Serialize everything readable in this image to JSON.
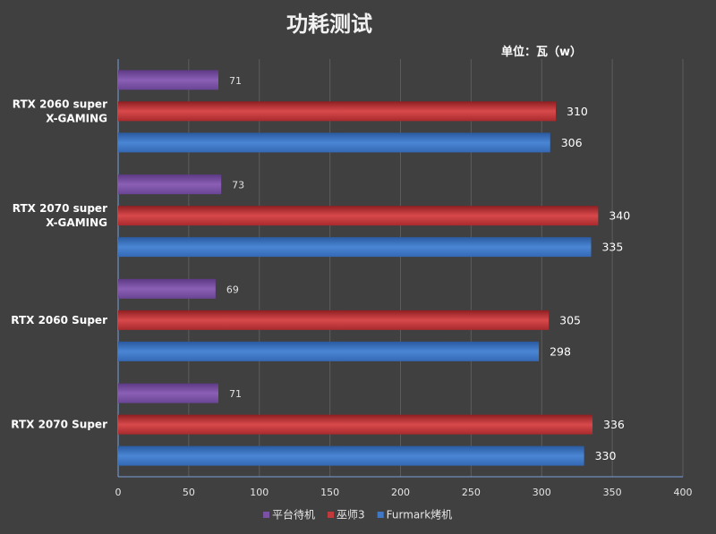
{
  "chart_data": {
    "type": "bar",
    "orientation": "horizontal",
    "title": "功耗测试",
    "unit_label": "单位：瓦（w）",
    "categories": [
      [
        "RTX 2060 super",
        "X-GAMING"
      ],
      [
        "RTX 2070 super",
        "X-GAMING"
      ],
      [
        "RTX 2060 Super"
      ],
      [
        "RTX 2070 Super"
      ]
    ],
    "series": [
      {
        "name": "平台待机",
        "color": "#7b52a3",
        "values": [
          71,
          73,
          69,
          71
        ]
      },
      {
        "name": "巫师3",
        "color": "#c0393b",
        "values": [
          310,
          340,
          305,
          336
        ]
      },
      {
        "name": "Furmark烤机",
        "color": "#3f78c5",
        "values": [
          306,
          335,
          298,
          330
        ]
      }
    ],
    "xlim": [
      0,
      400
    ],
    "xticks": [
      0,
      50,
      100,
      150,
      200,
      250,
      300,
      350,
      400
    ],
    "grid": true,
    "legend_position": "bottom"
  }
}
